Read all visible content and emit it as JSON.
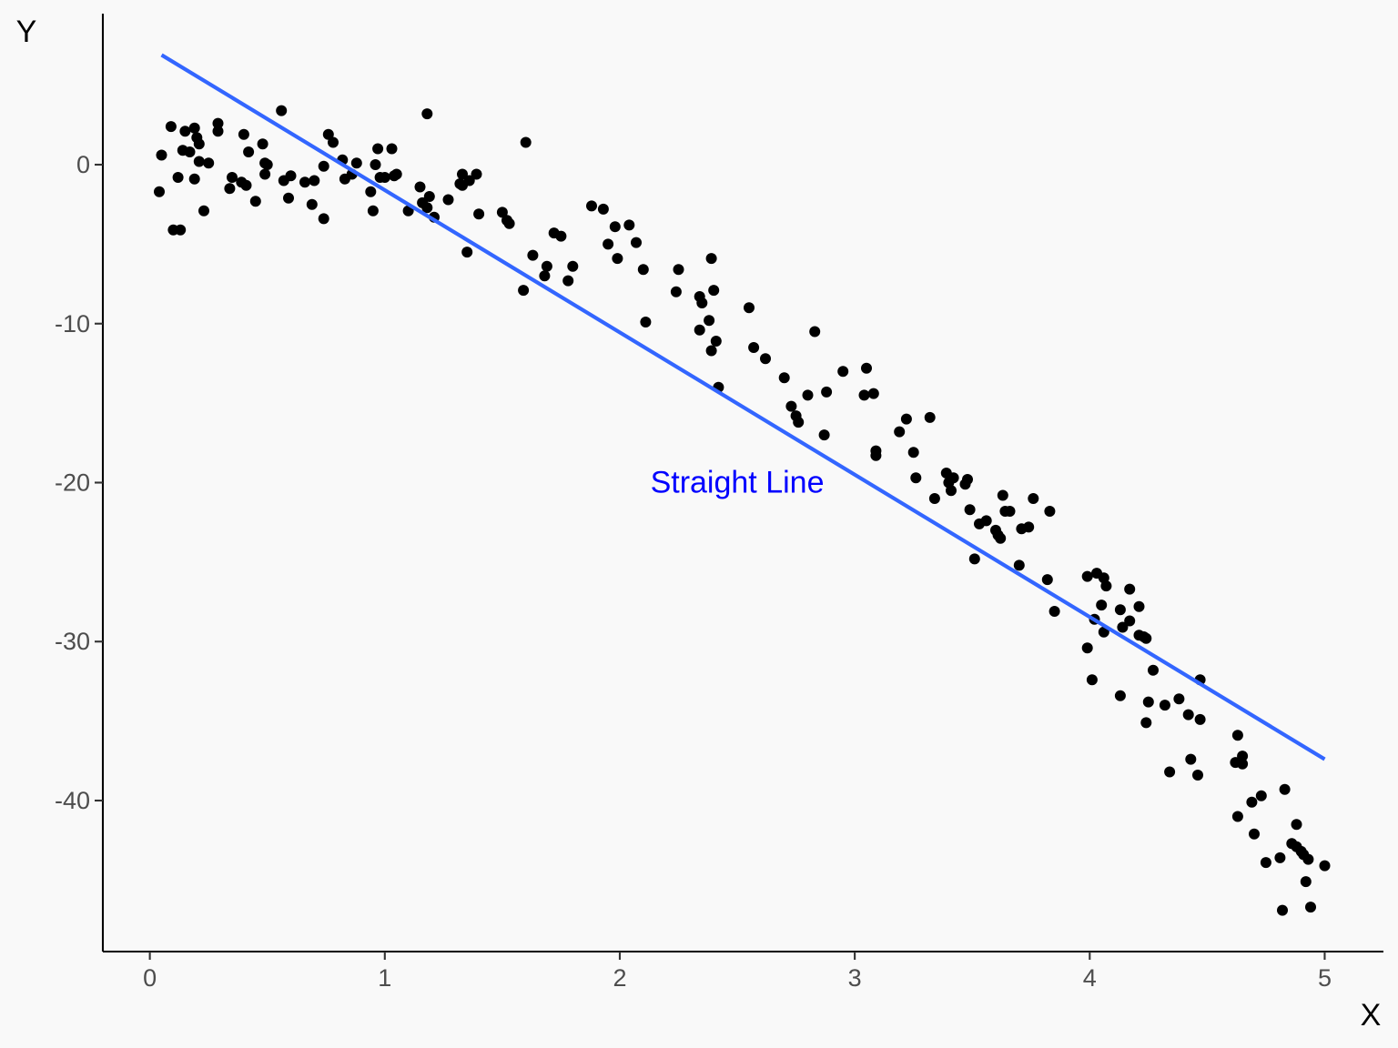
{
  "chart_data": {
    "type": "scatter",
    "title": "",
    "xlabel": "X",
    "ylabel": "Y",
    "xlim": [
      -0.2,
      5.25
    ],
    "ylim": [
      -49.5,
      9.5
    ],
    "xticks": [
      0,
      1,
      2,
      3,
      4,
      5
    ],
    "yticks": [
      0,
      -10,
      -20,
      -30,
      -40
    ],
    "xtick_labels": [
      "0",
      "1",
      "2",
      "3",
      "4",
      "5"
    ],
    "ytick_labels": [
      "0",
      "-10",
      "-20",
      "-30",
      "-40"
    ],
    "grid": false,
    "legend": "none",
    "colors": {
      "points": "#000000",
      "line": "#3366ff",
      "annotation": "#0000ff",
      "background": "#f9f9f9",
      "axis": "#000000",
      "tick_text": "#4d4d4d"
    },
    "fit_line": {
      "x": [
        0.05,
        5.0
      ],
      "y": [
        6.9,
        -37.4
      ]
    },
    "annotation": {
      "text": "Straight Line",
      "x": 2.5,
      "y": -20
    },
    "points": [
      [
        0.04,
        -1.7
      ],
      [
        0.05,
        0.6
      ],
      [
        0.09,
        2.4
      ],
      [
        0.1,
        -4.1
      ],
      [
        0.12,
        -0.8
      ],
      [
        0.13,
        -4.1
      ],
      [
        0.14,
        0.9
      ],
      [
        0.15,
        2.1
      ],
      [
        0.17,
        0.8
      ],
      [
        0.19,
        2.3
      ],
      [
        0.19,
        -0.9
      ],
      [
        0.2,
        1.7
      ],
      [
        0.21,
        1.3
      ],
      [
        0.21,
        0.2
      ],
      [
        0.23,
        -2.9
      ],
      [
        0.25,
        0.1
      ],
      [
        0.29,
        2.6
      ],
      [
        0.29,
        2.1
      ],
      [
        0.34,
        -1.5
      ],
      [
        0.35,
        -0.8
      ],
      [
        0.39,
        -1.1
      ],
      [
        0.4,
        1.9
      ],
      [
        0.41,
        -1.3
      ],
      [
        0.42,
        0.8
      ],
      [
        0.45,
        -2.3
      ],
      [
        0.48,
        1.3
      ],
      [
        0.49,
        -0.6
      ],
      [
        0.49,
        0.1
      ],
      [
        0.5,
        0.0
      ],
      [
        0.56,
        3.4
      ],
      [
        0.57,
        -1.0
      ],
      [
        0.59,
        -2.1
      ],
      [
        0.6,
        -0.7
      ],
      [
        0.66,
        -1.1
      ],
      [
        0.69,
        -2.5
      ],
      [
        0.7,
        -1.0
      ],
      [
        0.74,
        -0.1
      ],
      [
        0.74,
        -3.4
      ],
      [
        0.76,
        1.9
      ],
      [
        0.78,
        1.4
      ],
      [
        0.82,
        0.3
      ],
      [
        0.83,
        -0.9
      ],
      [
        0.86,
        -0.6
      ],
      [
        0.88,
        0.1
      ],
      [
        0.94,
        -1.7
      ],
      [
        0.95,
        -2.9
      ],
      [
        0.96,
        0.0
      ],
      [
        0.97,
        1.0
      ],
      [
        0.98,
        -0.8
      ],
      [
        1.0,
        -0.8
      ],
      [
        1.03,
        1.0
      ],
      [
        1.04,
        -0.7
      ],
      [
        1.05,
        -0.6
      ],
      [
        1.1,
        -2.9
      ],
      [
        1.15,
        -1.4
      ],
      [
        1.16,
        -2.4
      ],
      [
        1.18,
        3.2
      ],
      [
        1.18,
        -2.7
      ],
      [
        1.19,
        -2.0
      ],
      [
        1.21,
        -3.3
      ],
      [
        1.27,
        -2.2
      ],
      [
        1.32,
        -1.2
      ],
      [
        1.33,
        -0.6
      ],
      [
        1.33,
        -1.3
      ],
      [
        1.35,
        -5.5
      ],
      [
        1.36,
        -1.0
      ],
      [
        1.39,
        -0.6
      ],
      [
        1.4,
        -3.1
      ],
      [
        1.5,
        -3.0
      ],
      [
        1.52,
        -3.5
      ],
      [
        1.53,
        -3.7
      ],
      [
        1.59,
        -7.9
      ],
      [
        1.6,
        1.4
      ],
      [
        1.63,
        -5.7
      ],
      [
        1.68,
        -7.0
      ],
      [
        1.69,
        -6.4
      ],
      [
        1.72,
        -4.3
      ],
      [
        1.75,
        -4.5
      ],
      [
        1.78,
        -7.3
      ],
      [
        1.8,
        -6.4
      ],
      [
        1.88,
        -2.6
      ],
      [
        1.93,
        -2.8
      ],
      [
        1.95,
        -5.0
      ],
      [
        1.98,
        -3.9
      ],
      [
        1.99,
        -5.9
      ],
      [
        2.04,
        -3.8
      ],
      [
        2.07,
        -4.9
      ],
      [
        2.1,
        -6.6
      ],
      [
        2.11,
        -9.9
      ],
      [
        2.24,
        -8.0
      ],
      [
        2.25,
        -6.6
      ],
      [
        2.34,
        -8.3
      ],
      [
        2.34,
        -10.4
      ],
      [
        2.35,
        -8.7
      ],
      [
        2.38,
        -9.8
      ],
      [
        2.39,
        -11.7
      ],
      [
        2.39,
        -5.9
      ],
      [
        2.4,
        -7.9
      ],
      [
        2.41,
        -11.1
      ],
      [
        2.42,
        -14.0
      ],
      [
        2.55,
        -9.0
      ],
      [
        2.57,
        -11.5
      ],
      [
        2.62,
        -12.2
      ],
      [
        2.7,
        -13.4
      ],
      [
        2.73,
        -15.2
      ],
      [
        2.75,
        -15.8
      ],
      [
        2.76,
        -16.2
      ],
      [
        2.8,
        -14.5
      ],
      [
        2.83,
        -10.5
      ],
      [
        2.87,
        -17.0
      ],
      [
        2.88,
        -14.3
      ],
      [
        2.95,
        -13.0
      ],
      [
        3.04,
        -14.5
      ],
      [
        3.05,
        -12.8
      ],
      [
        3.08,
        -14.4
      ],
      [
        3.09,
        -18.0
      ],
      [
        3.09,
        -18.3
      ],
      [
        3.19,
        -16.8
      ],
      [
        3.22,
        -16.0
      ],
      [
        3.25,
        -18.1
      ],
      [
        3.26,
        -19.7
      ],
      [
        3.32,
        -15.9
      ],
      [
        3.34,
        -21.0
      ],
      [
        3.39,
        -19.4
      ],
      [
        3.4,
        -20.0
      ],
      [
        3.41,
        -20.5
      ],
      [
        3.42,
        -19.7
      ],
      [
        3.47,
        -20.1
      ],
      [
        3.48,
        -19.8
      ],
      [
        3.49,
        -21.7
      ],
      [
        3.51,
        -24.8
      ],
      [
        3.53,
        -22.6
      ],
      [
        3.56,
        -22.4
      ],
      [
        3.6,
        -23.0
      ],
      [
        3.61,
        -23.3
      ],
      [
        3.62,
        -23.5
      ],
      [
        3.63,
        -20.8
      ],
      [
        3.64,
        -21.8
      ],
      [
        3.66,
        -21.8
      ],
      [
        3.7,
        -25.2
      ],
      [
        3.71,
        -22.9
      ],
      [
        3.74,
        -22.8
      ],
      [
        3.76,
        -21.0
      ],
      [
        3.82,
        -26.1
      ],
      [
        3.83,
        -21.8
      ],
      [
        3.85,
        -28.1
      ],
      [
        3.99,
        -25.9
      ],
      [
        3.99,
        -30.4
      ],
      [
        4.01,
        -32.4
      ],
      [
        4.02,
        -28.6
      ],
      [
        4.03,
        -25.7
      ],
      [
        4.05,
        -27.7
      ],
      [
        4.06,
        -26.0
      ],
      [
        4.06,
        -29.4
      ],
      [
        4.07,
        -26.5
      ],
      [
        4.13,
        -28.0
      ],
      [
        4.13,
        -33.4
      ],
      [
        4.14,
        -29.1
      ],
      [
        4.17,
        -26.7
      ],
      [
        4.17,
        -28.7
      ],
      [
        4.21,
        -27.8
      ],
      [
        4.21,
        -29.6
      ],
      [
        4.23,
        -29.7
      ],
      [
        4.24,
        -29.8
      ],
      [
        4.24,
        -35.1
      ],
      [
        4.25,
        -33.8
      ],
      [
        4.27,
        -31.8
      ],
      [
        4.32,
        -34.0
      ],
      [
        4.34,
        -38.2
      ],
      [
        4.38,
        -33.6
      ],
      [
        4.42,
        -34.6
      ],
      [
        4.43,
        -37.4
      ],
      [
        4.46,
        -38.4
      ],
      [
        4.47,
        -34.9
      ],
      [
        4.47,
        -32.4
      ],
      [
        4.62,
        -37.6
      ],
      [
        4.63,
        -41.0
      ],
      [
        4.63,
        -35.9
      ],
      [
        4.65,
        -37.7
      ],
      [
        4.65,
        -37.2
      ],
      [
        4.69,
        -40.1
      ],
      [
        4.7,
        -42.1
      ],
      [
        4.73,
        -39.7
      ],
      [
        4.75,
        -43.9
      ],
      [
        4.81,
        -43.6
      ],
      [
        4.82,
        -46.9
      ],
      [
        4.83,
        -39.3
      ],
      [
        4.86,
        -42.7
      ],
      [
        4.88,
        -42.9
      ],
      [
        4.88,
        -41.5
      ],
      [
        4.9,
        -43.2
      ],
      [
        4.91,
        -43.4
      ],
      [
        4.92,
        -45.1
      ],
      [
        4.93,
        -43.7
      ],
      [
        4.94,
        -46.7
      ],
      [
        5.0,
        -44.1
      ]
    ]
  }
}
